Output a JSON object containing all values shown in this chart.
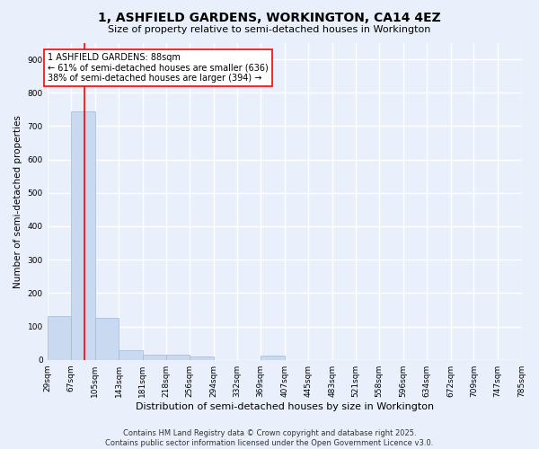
{
  "title": "1, ASHFIELD GARDENS, WORKINGTON, CA14 4EZ",
  "subtitle": "Size of property relative to semi-detached houses in Workington",
  "xlabel": "Distribution of semi-detached houses by size in Workington",
  "ylabel": "Number of semi-detached properties",
  "footer_line1": "Contains HM Land Registry data © Crown copyright and database right 2025.",
  "footer_line2": "Contains public sector information licensed under the Open Government Licence v3.0.",
  "bins": [
    "29sqm",
    "67sqm",
    "105sqm",
    "143sqm",
    "181sqm",
    "218sqm",
    "256sqm",
    "294sqm",
    "332sqm",
    "369sqm",
    "407sqm",
    "445sqm",
    "483sqm",
    "521sqm",
    "558sqm",
    "596sqm",
    "634sqm",
    "672sqm",
    "709sqm",
    "747sqm",
    "785sqm"
  ],
  "bar_heights": [
    130,
    745,
    125,
    28,
    15,
    15,
    10,
    0,
    0,
    12,
    0,
    0,
    0,
    0,
    0,
    0,
    0,
    0,
    0,
    0
  ],
  "bar_color": "#c8d9f0",
  "bar_edge_color": "#a0b8d8",
  "subject_line_x": 88,
  "subject_line_color": "red",
  "annotation_text": "1 ASHFIELD GARDENS: 88sqm\n← 61% of semi-detached houses are smaller (636)\n38% of semi-detached houses are larger (394) →",
  "annotation_box_color": "white",
  "annotation_box_edge_color": "red",
  "ylim": [
    0,
    950
  ],
  "yticks": [
    0,
    100,
    200,
    300,
    400,
    500,
    600,
    700,
    800,
    900
  ],
  "background_color": "#eaf0fb",
  "grid_color": "white",
  "bin_lefts": [
    29,
    67,
    105,
    143,
    181,
    218,
    256,
    294,
    332,
    369,
    407,
    445,
    483,
    521,
    558,
    596,
    634,
    672,
    709,
    747
  ],
  "xlim_left": 29,
  "xlim_right": 785,
  "title_fontsize": 10,
  "subtitle_fontsize": 8,
  "ylabel_fontsize": 7.5,
  "xlabel_fontsize": 8,
  "tick_fontsize": 6.5,
  "footer_fontsize": 6,
  "annot_fontsize": 7
}
